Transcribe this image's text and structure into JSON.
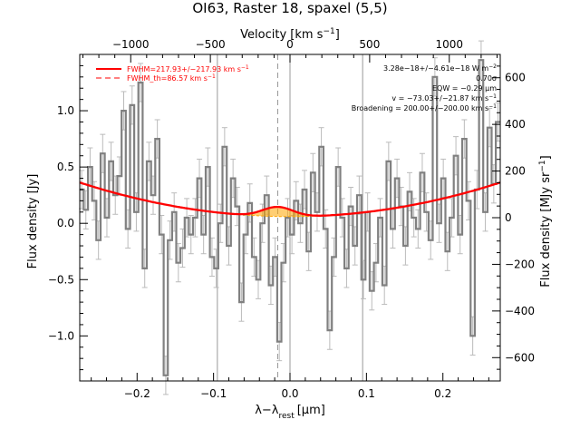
{
  "chart_data": {
    "type": "line",
    "title": "OI63, Raster 18, spaxel (5,5)",
    "xlabel": "λ−λ",
    "xlabel_sub": "rest",
    "xlabel_unit": "[μm]",
    "ylabel": "Flux density [Jy]",
    "top_axis_label": "Velocity [km s",
    "top_axis_sup": "−1",
    "top_axis_close": "]",
    "right_axis_label": "Flux density [MJy sr",
    "right_axis_sup": "−1",
    "right_axis_close": "]",
    "xlim": [
      -0.275,
      0.275
    ],
    "ylim": [
      -1.4,
      1.5
    ],
    "top_xlim": [
      -1320,
      1320
    ],
    "right_ylim": [
      -700,
      700
    ],
    "x_ticks": [
      -0.2,
      -0.1,
      0.0,
      0.1,
      0.2
    ],
    "x_tick_labels": [
      "−0.2",
      "−0.1",
      "0.0",
      "0.1",
      "0.2"
    ],
    "y_ticks": [
      -1.0,
      -0.5,
      0.0,
      0.5,
      1.0
    ],
    "y_tick_labels": [
      "−1.0",
      "−0.5",
      "0.0",
      "0.5",
      "1.0"
    ],
    "top_ticks": [
      -1000,
      -500,
      0,
      500,
      1000
    ],
    "top_tick_labels": [
      "−1000",
      "−500",
      "0",
      "500",
      "1000"
    ],
    "right_ticks": [
      -600,
      -400,
      -200,
      0,
      200,
      400,
      600
    ],
    "right_tick_labels": [
      "−600",
      "−400",
      "−200",
      "0",
      "200",
      "400",
      "600"
    ],
    "vertical_lines": [
      -0.095,
      0.0,
      0.095
    ],
    "dashed_vertical_line": -0.016,
    "legend": [
      {
        "label": "FWHM=217.93+/−217.93 km s",
        "sup": "−1",
        "style": "solid"
      },
      {
        "label": "FWHM_th=86.57 km s",
        "sup": "−1",
        "style": "dashed"
      }
    ],
    "annotations": [
      {
        "text": "3.28e−18+/−4.61e−18 W m",
        "sup": "−2"
      },
      {
        "text": "0.70σ",
        "sup": ""
      },
      {
        "text": "EQW = −0.29 μm",
        "sup": ""
      },
      {
        "text": "v = −73.03+/−21.87 km s",
        "sup": "−1"
      },
      {
        "text": "Broadening = 200.00+/−200.00 km s",
        "sup": "−1"
      }
    ],
    "spectrum_step": 0.0055,
    "spectrum": [
      {
        "x": -0.2725,
        "y": 0.3
      },
      {
        "x": -0.267,
        "y": 0.12
      },
      {
        "x": -0.2615,
        "y": 0.5
      },
      {
        "x": -0.256,
        "y": 0.2
      },
      {
        "x": -0.2505,
        "y": -0.15
      },
      {
        "x": -0.245,
        "y": 0.62
      },
      {
        "x": -0.2395,
        "y": 0.05
      },
      {
        "x": -0.234,
        "y": 0.55
      },
      {
        "x": -0.2285,
        "y": 0.25
      },
      {
        "x": -0.223,
        "y": 0.42
      },
      {
        "x": -0.2175,
        "y": 1.0
      },
      {
        "x": -0.212,
        "y": -0.05
      },
      {
        "x": -0.2065,
        "y": 1.05
      },
      {
        "x": -0.201,
        "y": 0.1
      },
      {
        "x": -0.1955,
        "y": 1.25
      },
      {
        "x": -0.19,
        "y": -0.4
      },
      {
        "x": -0.1845,
        "y": 0.55
      },
      {
        "x": -0.179,
        "y": 0.25
      },
      {
        "x": -0.1735,
        "y": 0.75
      },
      {
        "x": -0.168,
        "y": -0.1
      },
      {
        "x": -0.1625,
        "y": -1.35
      },
      {
        "x": -0.157,
        "y": -0.15
      },
      {
        "x": -0.1515,
        "y": 0.1
      },
      {
        "x": -0.146,
        "y": -0.35
      },
      {
        "x": -0.1405,
        "y": -0.22
      },
      {
        "x": -0.135,
        "y": 0.05
      },
      {
        "x": -0.1295,
        "y": -0.1
      },
      {
        "x": -0.124,
        "y": 0.05
      },
      {
        "x": -0.1185,
        "y": 0.4
      },
      {
        "x": -0.113,
        "y": -0.1
      },
      {
        "x": -0.1075,
        "y": 0.5
      },
      {
        "x": -0.102,
        "y": -0.3
      },
      {
        "x": -0.0965,
        "y": -0.4
      },
      {
        "x": -0.091,
        "y": 0.0
      },
      {
        "x": -0.0855,
        "y": 0.68
      },
      {
        "x": -0.08,
        "y": -0.2
      },
      {
        "x": -0.0745,
        "y": 0.4
      },
      {
        "x": -0.069,
        "y": 0.15
      },
      {
        "x": -0.0635,
        "y": -0.7
      },
      {
        "x": -0.058,
        "y": -0.1
      },
      {
        "x": -0.0525,
        "y": 0.18
      },
      {
        "x": -0.047,
        "y": -0.3
      },
      {
        "x": -0.0415,
        "y": -0.5
      },
      {
        "x": -0.036,
        "y": 0.0
      },
      {
        "x": -0.0305,
        "y": 0.25
      },
      {
        "x": -0.025,
        "y": -0.55
      },
      {
        "x": -0.0195,
        "y": -0.3
      },
      {
        "x": -0.014,
        "y": -1.05
      },
      {
        "x": -0.0085,
        "y": -0.35
      },
      {
        "x": -0.003,
        "y": 0.05
      },
      {
        "x": 0.0025,
        "y": -0.1
      },
      {
        "x": 0.008,
        "y": 0.2
      },
      {
        "x": 0.0135,
        "y": 0.0
      },
      {
        "x": 0.019,
        "y": 0.3
      },
      {
        "x": 0.0245,
        "y": -0.25
      },
      {
        "x": 0.03,
        "y": 0.45
      },
      {
        "x": 0.0355,
        "y": 0.1
      },
      {
        "x": 0.041,
        "y": 0.68
      },
      {
        "x": 0.0465,
        "y": -0.05
      },
      {
        "x": 0.052,
        "y": -0.95
      },
      {
        "x": 0.0575,
        "y": -0.3
      },
      {
        "x": 0.063,
        "y": 0.5
      },
      {
        "x": 0.0685,
        "y": 0.05
      },
      {
        "x": 0.074,
        "y": -0.4
      },
      {
        "x": 0.0795,
        "y": 0.15
      },
      {
        "x": 0.085,
        "y": -0.2
      },
      {
        "x": 0.0905,
        "y": 0.25
      },
      {
        "x": 0.096,
        "y": -0.5
      },
      {
        "x": 0.1015,
        "y": 0.1
      },
      {
        "x": 0.107,
        "y": -0.6
      },
      {
        "x": 0.1125,
        "y": -0.35
      },
      {
        "x": 0.118,
        "y": 0.05
      },
      {
        "x": 0.1235,
        "y": -0.55
      },
      {
        "x": 0.129,
        "y": 0.55
      },
      {
        "x": 0.1345,
        "y": -0.05
      },
      {
        "x": 0.14,
        "y": 0.4
      },
      {
        "x": 0.1455,
        "y": 0.15
      },
      {
        "x": 0.151,
        "y": -0.2
      },
      {
        "x": 0.1565,
        "y": 0.28
      },
      {
        "x": 0.162,
        "y": 0.05
      },
      {
        "x": 0.1675,
        "y": -0.05
      },
      {
        "x": 0.173,
        "y": 0.45
      },
      {
        "x": 0.1785,
        "y": 0.1
      },
      {
        "x": 0.184,
        "y": -0.15
      },
      {
        "x": 0.1895,
        "y": 1.3
      },
      {
        "x": 0.195,
        "y": 0.0
      },
      {
        "x": 0.2005,
        "y": 0.4
      },
      {
        "x": 0.206,
        "y": -0.25
      },
      {
        "x": 0.2115,
        "y": 0.05
      },
      {
        "x": 0.217,
        "y": 0.6
      },
      {
        "x": 0.2225,
        "y": -0.1
      },
      {
        "x": 0.228,
        "y": 0.75
      },
      {
        "x": 0.2335,
        "y": 0.2
      },
      {
        "x": 0.239,
        "y": -1.0
      },
      {
        "x": 0.2445,
        "y": 0.3
      },
      {
        "x": 0.25,
        "y": 1.45
      },
      {
        "x": 0.2555,
        "y": 0.1
      },
      {
        "x": 0.261,
        "y": 0.85
      },
      {
        "x": 0.2665,
        "y": 0.35
      },
      {
        "x": 0.272,
        "y": 0.9
      }
    ],
    "error_bar": 0.17,
    "model_fit": {
      "continuum": {
        "c": 0.06,
        "a": 4.0
      },
      "gaussian": {
        "center": -0.016,
        "amplitude": 0.085,
        "sigma": 0.02
      }
    },
    "colors": {
      "spectrum": "#808080",
      "error_bars": "#bbbbbb",
      "fit": "#ff0000",
      "gaussian_fill": "#ffa500",
      "axis": "#000000",
      "vertical_lines": "#999999"
    }
  }
}
